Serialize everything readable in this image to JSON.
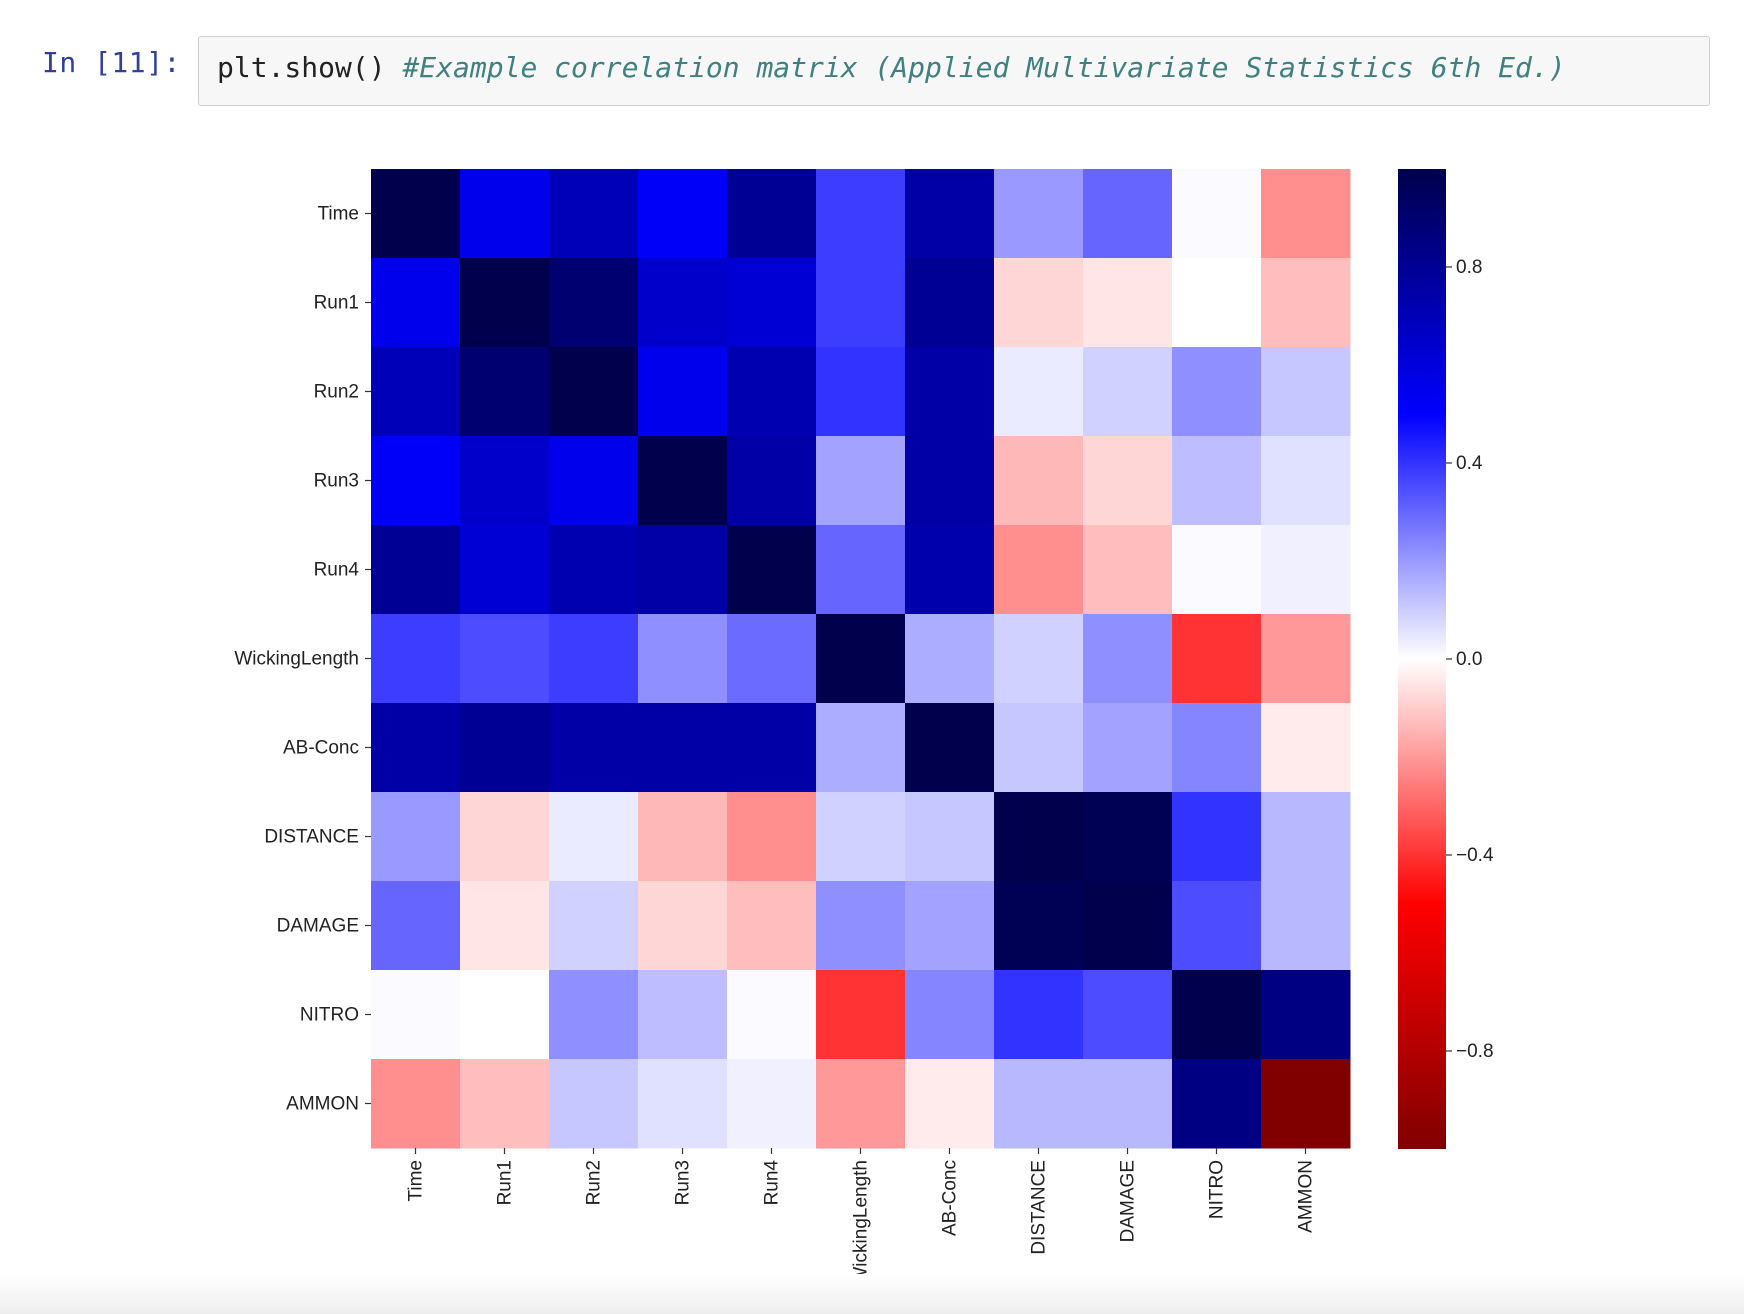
{
  "cell": {
    "prompt": "In [11]:",
    "code": "plt.show()",
    "comment": "#Example correlation matrix (Applied Multivariate Statistics 6th Ed.)"
  },
  "chart_data": {
    "type": "heatmap",
    "title": "",
    "xlabel": "",
    "ylabel": "",
    "colormap": "seismic (reversed: dark navy = 1, white = 0, dark red = -1)",
    "vmin": -1,
    "vmax": 1,
    "colorbar_ticks": [
      0.8,
      0.4,
      0.0,
      -0.4,
      -0.8
    ],
    "colorbar_tick_labels": [
      "0.8",
      "0.4",
      "0.0",
      "−0.4",
      "−0.8"
    ],
    "row_labels": [
      "Time",
      "Run1",
      "Run2",
      "Run3",
      "Run4",
      "WickingLength",
      "AB-Conc",
      "DISTANCE",
      "DAMAGE",
      "NITRO",
      "AMMON"
    ],
    "col_labels": [
      "Time",
      "Run1",
      "Run2",
      "Run3",
      "Run4",
      "WickingLength",
      "AB-Conc",
      "DISTANCE",
      "DAMAGE",
      "NITRO",
      "AMMON"
    ],
    "matrix": [
      [
        1.0,
        0.55,
        0.7,
        0.52,
        0.8,
        0.38,
        0.75,
        0.2,
        0.3,
        0.01,
        -0.22
      ],
      [
        0.55,
        1.0,
        0.9,
        0.65,
        0.62,
        0.38,
        0.8,
        -0.08,
        -0.05,
        0.0,
        -0.13
      ],
      [
        0.7,
        0.9,
        1.0,
        0.55,
        0.72,
        0.4,
        0.75,
        0.04,
        0.09,
        0.22,
        0.11
      ],
      [
        0.52,
        0.65,
        0.55,
        1.0,
        0.75,
        0.18,
        0.75,
        -0.14,
        -0.08,
        0.13,
        0.06
      ],
      [
        0.8,
        0.62,
        0.72,
        0.75,
        1.0,
        0.3,
        0.73,
        -0.22,
        -0.13,
        0.01,
        0.03
      ],
      [
        0.38,
        0.35,
        0.38,
        0.22,
        0.29,
        1.0,
        0.16,
        0.09,
        0.22,
        -0.4,
        -0.2
      ],
      [
        0.75,
        0.8,
        0.75,
        0.75,
        0.75,
        0.16,
        1.0,
        0.11,
        0.18,
        0.24,
        -0.04
      ],
      [
        0.2,
        -0.08,
        0.04,
        -0.14,
        -0.22,
        0.09,
        0.11,
        1.0,
        0.98,
        0.4,
        0.14
      ],
      [
        0.3,
        -0.05,
        0.09,
        -0.08,
        -0.13,
        0.22,
        0.18,
        0.98,
        1.0,
        0.35,
        0.14
      ],
      [
        0.01,
        0.0,
        0.22,
        0.13,
        0.01,
        -0.4,
        0.24,
        0.4,
        0.35,
        1.0,
        0.85
      ],
      [
        -0.22,
        -0.13,
        0.11,
        0.06,
        0.03,
        -0.2,
        -0.04,
        0.14,
        0.14,
        0.85,
        -1.0
      ]
    ]
  }
}
